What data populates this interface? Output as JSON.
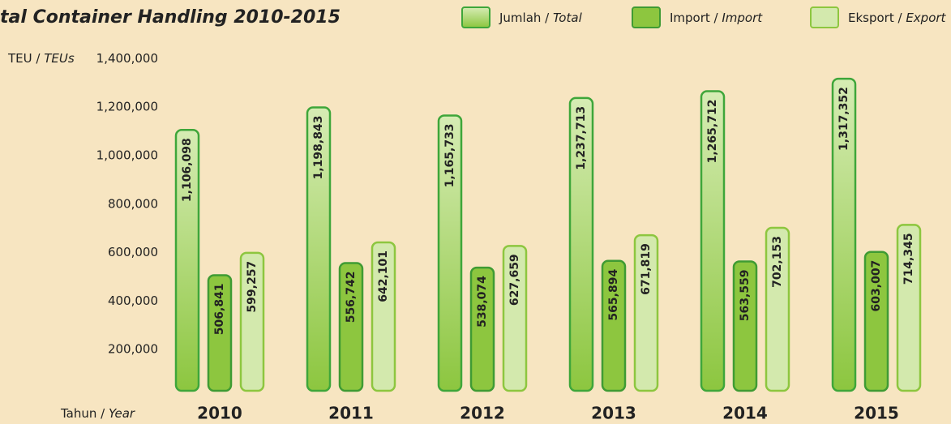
{
  "chart_data": {
    "type": "bar",
    "title": "tal Container Handling 2010-2015",
    "y_label": "TEU / TEUs",
    "x_label": "Tahun / Year",
    "categories": [
      "2010",
      "2011",
      "2012",
      "2013",
      "2014",
      "2015"
    ],
    "series": [
      {
        "name": "Jumlah / Total",
        "color": "#a9d573",
        "stroke": "#3ea63a",
        "values": [
          1106098,
          1198843,
          1165733,
          1237713,
          1265712,
          1317352
        ],
        "value_labels": [
          "1,106,098",
          "1,198,843",
          "1,165,733",
          "1,237,713",
          "1,265,712",
          "1,317,352"
        ]
      },
      {
        "name": "Import / Import",
        "color": "#8dc63f",
        "stroke": "#3f9b33",
        "values": [
          506841,
          556742,
          538074,
          565894,
          563559,
          603007
        ],
        "value_labels": [
          "506,841",
          "556,742",
          "538,074",
          "565,894",
          "563,559",
          "603,007"
        ]
      },
      {
        "name": "Eksport / Export",
        "color": "#d3e9ad",
        "stroke": "#8dc63f",
        "values": [
          599257,
          642101,
          627659,
          671819,
          702153,
          714345
        ],
        "value_labels": [
          "599,257",
          "642,101",
          "627,659",
          "671,819",
          "702,153",
          "714,345"
        ]
      }
    ],
    "ylim": [
      0,
      1400000
    ],
    "yticks": [
      {
        "value": 200000,
        "label": "200,000"
      },
      {
        "value": 400000,
        "label": "400,000"
      },
      {
        "value": 600000,
        "label": "600,000"
      },
      {
        "value": 800000,
        "label": "800,000"
      },
      {
        "value": 1000000,
        "label": "1,000,000"
      },
      {
        "value": 1200000,
        "label": "1,200,000"
      },
      {
        "value": 1400000,
        "label": "1,400,000"
      }
    ],
    "grid": false
  }
}
